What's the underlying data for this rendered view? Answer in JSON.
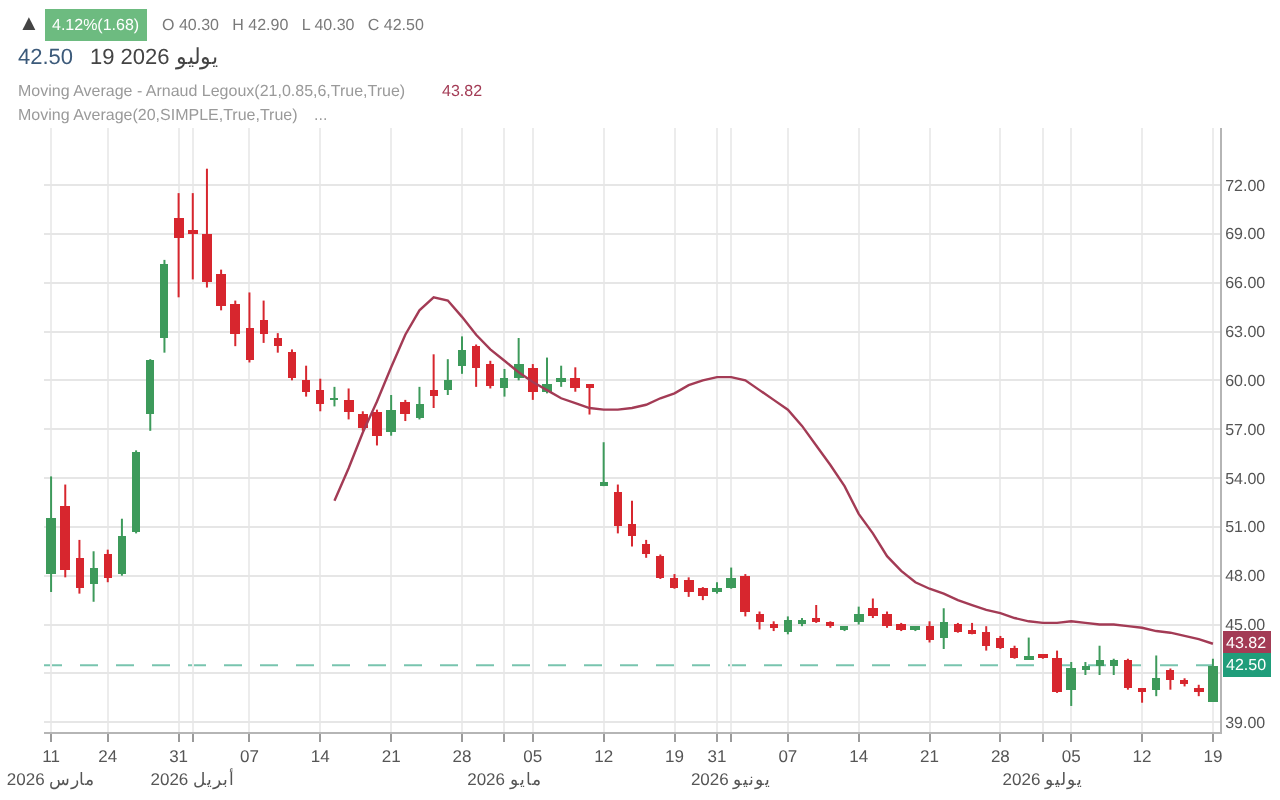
{
  "chart_data": {
    "type": "candlestick",
    "categories": [
      "11\nمارس 2026",
      null,
      null,
      null,
      "24",
      null,
      null,
      null,
      null,
      "31",
      "\nأبريل 2026",
      null,
      null,
      null,
      "07",
      null,
      null,
      null,
      null,
      "14",
      null,
      null,
      null,
      null,
      "21",
      null,
      null,
      null,
      null,
      "28",
      null,
      null,
      "\nمايو 2026",
      null,
      "05",
      null,
      null,
      null,
      null,
      "12",
      null,
      null,
      null,
      null,
      "19",
      null,
      null,
      "31",
      "\nيونيو 2026",
      null,
      null,
      null,
      "07",
      null,
      null,
      null,
      null,
      "14",
      null,
      null,
      null,
      null,
      "21",
      null,
      null,
      null,
      null,
      "28",
      null,
      null,
      "\nيوليو 2026",
      null,
      "05",
      null,
      null,
      null,
      null,
      "12",
      null,
      null,
      null,
      null,
      "19"
    ],
    "ohlc": [
      [
        48.1,
        54.1,
        47.0,
        51.5
      ],
      [
        52.3,
        53.6,
        47.9,
        48.4
      ],
      [
        49.1,
        50.2,
        46.9,
        47.3
      ],
      [
        47.5,
        49.5,
        46.4,
        48.5
      ],
      [
        49.3,
        49.6,
        47.6,
        47.8
      ],
      [
        48.1,
        51.5,
        48.0,
        50.5
      ],
      [
        50.7,
        55.7,
        50.6,
        55.6
      ],
      [
        57.9,
        61.3,
        56.9,
        61.2
      ],
      [
        62.6,
        67.4,
        61.7,
        67.2
      ],
      [
        70.0,
        71.5,
        65.1,
        68.7
      ],
      [
        69.2,
        71.5,
        66.2,
        69.0
      ],
      [
        69.0,
        73.0,
        65.7,
        66.1
      ],
      [
        66.5,
        66.8,
        64.3,
        64.6
      ],
      [
        64.7,
        64.9,
        62.1,
        62.9
      ],
      [
        63.2,
        65.4,
        61.1,
        61.2
      ],
      [
        63.7,
        64.9,
        62.3,
        62.8
      ],
      [
        62.6,
        62.9,
        61.7,
        62.1
      ],
      [
        61.7,
        61.9,
        60.0,
        60.2
      ],
      [
        60.0,
        60.9,
        59.0,
        59.3
      ],
      [
        59.4,
        60.1,
        58.1,
        58.6
      ],
      [
        58.8,
        59.6,
        58.4,
        58.9
      ],
      [
        58.8,
        59.5,
        57.6,
        58.0
      ],
      [
        57.9,
        58.1,
        56.9,
        57.1
      ],
      [
        58.0,
        58.2,
        56.0,
        56.6
      ],
      [
        56.8,
        59.1,
        56.6,
        58.2
      ],
      [
        58.7,
        58.8,
        57.5,
        57.9
      ],
      [
        57.7,
        59.6,
        57.6,
        58.6
      ],
      [
        59.3,
        61.6,
        58.3,
        59.1
      ],
      [
        59.4,
        61.3,
        59.1,
        60.0
      ],
      [
        60.9,
        62.7,
        60.4,
        61.9
      ],
      [
        62.1,
        62.2,
        59.6,
        60.8
      ],
      [
        61.0,
        61.2,
        59.5,
        59.6
      ],
      [
        59.5,
        60.7,
        59.0,
        60.1
      ],
      [
        60.2,
        62.6,
        60.0,
        61.0
      ],
      [
        60.7,
        61.0,
        58.8,
        59.3
      ],
      [
        59.3,
        61.4,
        59.2,
        59.8
      ],
      [
        60.0,
        60.9,
        59.6,
        60.1
      ],
      [
        60.1,
        60.8,
        59.3,
        59.5
      ],
      [
        59.7,
        59.7,
        57.9,
        59.6
      ],
      [
        53.6,
        56.2,
        53.5,
        53.7
      ],
      [
        53.1,
        53.6,
        50.6,
        51.1
      ],
      [
        51.2,
        52.6,
        49.8,
        50.4
      ],
      [
        50.0,
        50.2,
        49.1,
        49.3
      ],
      [
        49.2,
        49.3,
        47.8,
        47.9
      ],
      [
        47.9,
        48.1,
        47.2,
        47.3
      ],
      [
        47.7,
        47.9,
        46.7,
        47.0
      ],
      [
        47.2,
        47.3,
        46.5,
        46.8
      ],
      [
        47.1,
        47.6,
        46.9,
        47.2
      ],
      [
        47.3,
        48.5,
        47.2,
        47.9
      ],
      [
        48.0,
        48.1,
        45.5,
        45.8
      ],
      [
        45.7,
        45.8,
        44.7,
        45.1
      ],
      [
        45.0,
        45.2,
        44.6,
        44.9
      ],
      [
        44.6,
        45.5,
        44.4,
        45.3
      ],
      [
        45.1,
        45.4,
        44.9,
        45.2
      ],
      [
        45.3,
        46.2,
        45.1,
        45.2
      ],
      [
        45.1,
        45.2,
        44.8,
        45.0
      ],
      [
        44.7,
        44.8,
        44.6,
        44.8
      ],
      [
        45.1,
        46.1,
        45.0,
        45.6
      ],
      [
        46.0,
        46.6,
        45.4,
        45.5
      ],
      [
        45.7,
        45.8,
        44.8,
        44.9
      ],
      [
        45.0,
        45.1,
        44.6,
        44.7
      ],
      [
        44.7,
        44.9,
        44.6,
        44.8
      ],
      [
        44.9,
        45.2,
        43.9,
        44.0
      ],
      [
        44.2,
        46.0,
        43.5,
        45.2
      ],
      [
        45.0,
        45.1,
        44.5,
        44.6
      ],
      [
        44.6,
        45.1,
        44.4,
        44.5
      ],
      [
        44.6,
        44.9,
        43.4,
        43.7
      ],
      [
        44.2,
        44.3,
        43.5,
        43.6
      ],
      [
        43.6,
        43.7,
        42.9,
        43.0
      ],
      [
        42.9,
        44.2,
        42.9,
        43.0
      ],
      [
        43.1,
        43.1,
        42.9,
        42.9
      ],
      [
        43.0,
        43.4,
        40.8,
        40.9
      ],
      [
        41.0,
        42.7,
        40.0,
        42.3
      ],
      [
        42.3,
        42.7,
        41.9,
        42.5
      ],
      [
        42.4,
        43.7,
        41.9,
        42.8
      ],
      [
        42.5,
        42.9,
        41.9,
        42.8
      ],
      [
        42.8,
        42.9,
        41.0,
        41.1
      ],
      [
        41.0,
        41.1,
        40.2,
        40.8
      ],
      [
        41.0,
        43.1,
        40.6,
        41.7
      ],
      [
        42.2,
        42.3,
        41.0,
        41.6
      ],
      [
        41.6,
        41.7,
        41.2,
        41.3
      ],
      [
        41.1,
        41.3,
        40.6,
        40.8
      ],
      [
        40.3,
        42.9,
        40.3,
        42.5
      ]
    ],
    "colors": [
      "#3d9a5b",
      "#d7262e",
      "#d7262e",
      "#3d9a5b",
      "#d7262e",
      "#3d9a5b",
      "#3d9a5b",
      "#3d9a5b",
      "#3d9a5b",
      "#d7262e",
      "#d7262e",
      "#d7262e",
      "#d7262e",
      "#d7262e",
      "#d7262e",
      "#d7262e",
      "#d7262e",
      "#d7262e",
      "#d7262e",
      "#d7262e",
      "#3d9a5b",
      "#d7262e",
      "#d7262e",
      "#d7262e",
      "#3d9a5b",
      "#d7262e",
      "#3d9a5b",
      "#d7262e",
      "#3d9a5b",
      "#3d9a5b",
      "#d7262e",
      "#d7262e",
      "#3d9a5b",
      "#3d9a5b",
      "#d7262e",
      "#3d9a5b",
      "#3d9a5b",
      "#d7262e",
      "#d7262e",
      "#3d9a5b",
      "#d7262e",
      "#d7262e",
      "#d7262e",
      "#d7262e",
      "#d7262e",
      "#d7262e",
      "#d7262e",
      "#3d9a5b",
      "#3d9a5b",
      "#d7262e",
      "#d7262e",
      "#d7262e",
      "#3d9a5b",
      "#3d9a5b",
      "#d7262e",
      "#d7262e",
      "#3d9a5b",
      "#3d9a5b",
      "#d7262e",
      "#d7262e",
      "#d7262e",
      "#3d9a5b",
      "#d7262e",
      "#3d9a5b",
      "#d7262e",
      "#d7262e",
      "#d7262e",
      "#d7262e",
      "#d7262e",
      "#3d9a5b",
      "#d7262e",
      "#d7262e",
      "#3d9a5b",
      "#3d9a5b",
      "#3d9a5b",
      "#3d9a5b",
      "#d7262e",
      "#d7262e",
      "#3d9a5b",
      "#d7262e",
      "#d7262e",
      "#d7262e",
      "#3d9a5b"
    ],
    "series": [
      {
        "type": "line",
        "color": "#a33b55",
        "values": [
          null,
          null,
          null,
          null,
          null,
          null,
          null,
          null,
          null,
          null,
          null,
          null,
          null,
          null,
          null,
          null,
          null,
          null,
          null,
          null,
          52.6,
          54.6,
          56.8,
          58.7,
          60.8,
          62.8,
          64.3,
          65.1,
          64.9,
          63.9,
          62.8,
          61.9,
          61.2,
          60.5,
          59.9,
          59.4,
          58.9,
          58.6,
          58.3,
          58.2,
          58.2,
          58.3,
          58.5,
          58.9,
          59.2,
          59.7,
          60.0,
          60.2,
          60.2,
          60.0,
          59.4,
          58.8,
          58.2,
          57.2,
          56.0,
          54.8,
          53.5,
          51.8,
          50.6,
          49.2,
          48.3,
          47.6,
          47.2,
          46.9,
          46.5,
          46.2,
          45.9,
          45.7,
          45.4,
          45.2,
          45.1,
          45.1,
          45.2,
          45.1,
          45.0,
          45.0,
          44.9,
          44.8,
          44.6,
          44.5,
          44.3,
          44.1,
          43.82
        ],
        "value_labels": [
          null,
          null,
          null,
          null,
          null,
          null,
          null,
          null,
          null,
          null,
          null,
          null,
          null,
          null,
          null,
          null,
          null,
          null,
          null,
          null,
          null,
          null,
          null,
          null,
          null,
          null,
          null,
          null,
          null,
          null,
          null,
          null,
          null,
          null,
          null,
          null,
          null,
          null,
          null,
          null,
          null,
          null,
          null,
          null,
          null,
          null,
          null,
          null,
          null,
          null,
          null,
          null,
          null,
          null,
          null,
          null,
          null,
          null,
          null,
          null,
          null,
          null,
          null,
          null,
          null,
          null,
          null,
          null,
          null,
          null,
          null,
          null,
          null,
          null,
          null,
          null,
          null,
          null,
          null,
          null,
          null,
          null,
          "43.82"
        ]
      }
    ],
    "ylim": [
      38.4,
      75.5
    ],
    "yticks": [
      {
        "value": 39,
        "label": "39.00"
      },
      {
        "value": 42,
        "label": null
      },
      {
        "value": 45,
        "label": "45.00"
      },
      {
        "value": 48,
        "label": "48.00"
      },
      {
        "value": 51,
        "label": "51.00"
      },
      {
        "value": 54,
        "label": "54.00"
      },
      {
        "value": 57,
        "label": "57.00"
      },
      {
        "value": 60,
        "label": "60.00"
      },
      {
        "value": 63,
        "label": "63.00"
      },
      {
        "value": 66,
        "label": "66.00"
      },
      {
        "value": 69,
        "label": "69.00"
      },
      {
        "value": 72,
        "label": "72.00"
      }
    ],
    "grid": true,
    "ref_lines": [
      {
        "axis": "y",
        "value": 42.5,
        "label": "42.50",
        "color": "#1f9d7a",
        "line_style": "dashed"
      }
    ],
    "annotations": [
      "▲",
      "4.12%(1.68)",
      "O 40.30   H 42.90   L 40.30   C 42.50",
      "42.50",
      "19 يوليو 2026",
      "Moving Average - Arnaud Legoux(21,0.85,6,True,True)",
      "43.82",
      "Moving Average(20,SIMPLE,True,True)",
      "..."
    ]
  }
}
